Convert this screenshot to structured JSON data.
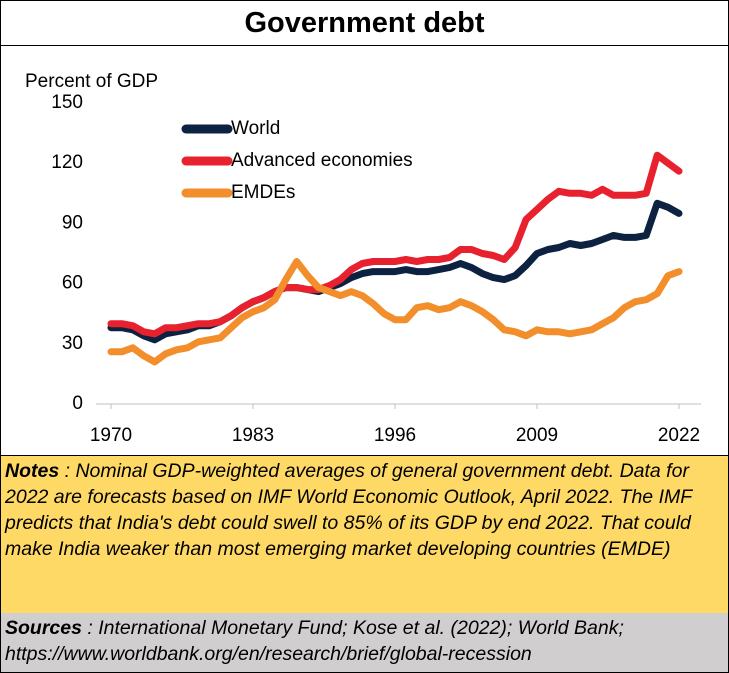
{
  "chart_data": {
    "type": "line",
    "title": "Government debt",
    "y_label": "Percent of GDP",
    "x": [
      1970,
      1971,
      1972,
      1973,
      1974,
      1975,
      1976,
      1977,
      1978,
      1979,
      1980,
      1981,
      1982,
      1983,
      1984,
      1985,
      1986,
      1987,
      1988,
      1989,
      1990,
      1991,
      1992,
      1993,
      1994,
      1995,
      1996,
      1997,
      1998,
      1999,
      2000,
      2001,
      2002,
      2003,
      2004,
      2005,
      2006,
      2007,
      2008,
      2009,
      2010,
      2011,
      2012,
      2013,
      2014,
      2015,
      2016,
      2017,
      2018,
      2019,
      2020,
      2021,
      2022
    ],
    "xlim": [
      1970,
      2022
    ],
    "xticks": [
      1970,
      1983,
      1996,
      2009,
      2022
    ],
    "ylim": [
      0,
      150
    ],
    "yticks": [
      0,
      30,
      60,
      90,
      120,
      150
    ],
    "grid": false,
    "legend": "upper left",
    "series": [
      {
        "name": "World",
        "color": "#0d2240",
        "values": [
          38,
          38,
          37,
          34,
          32,
          35,
          36,
          37,
          39,
          39,
          41,
          44,
          48,
          51,
          53,
          56,
          58,
          58,
          57,
          56,
          58,
          60,
          63,
          65,
          66,
          66,
          66,
          67,
          66,
          66,
          67,
          68,
          70,
          68,
          65,
          63,
          62,
          64,
          69,
          75,
          77,
          78,
          80,
          79,
          80,
          82,
          84,
          83,
          83,
          84,
          100,
          98,
          95
        ]
      },
      {
        "name": "Advanced economies",
        "color": "#e8212f",
        "values": [
          40,
          40,
          39,
          36,
          35,
          38,
          38,
          39,
          40,
          40,
          41,
          44,
          48,
          51,
          53,
          56,
          58,
          58,
          57,
          57,
          59,
          62,
          67,
          70,
          71,
          71,
          71,
          72,
          71,
          72,
          72,
          73,
          77,
          77,
          75,
          74,
          72,
          78,
          92,
          97,
          102,
          106,
          105,
          105,
          104,
          107,
          104,
          104,
          104,
          105,
          124,
          120,
          116
        ]
      },
      {
        "name": "EMDEs",
        "color": "#f28e2b",
        "values": [
          26,
          26,
          28,
          24,
          21,
          25,
          27,
          28,
          31,
          32,
          33,
          38,
          43,
          46,
          48,
          52,
          62,
          71,
          64,
          58,
          56,
          54,
          56,
          54,
          50,
          45,
          42,
          42,
          48,
          49,
          47,
          48,
          51,
          49,
          46,
          42,
          37,
          36,
          34,
          37,
          36,
          36,
          35,
          36,
          37,
          40,
          43,
          48,
          51,
          52,
          55,
          64,
          66
        ]
      }
    ]
  },
  "notes": {
    "label": "Notes",
    "text": ": Nominal GDP-weighted averages of general government debt. Data for 2022 are forecasts based on IMF World Economic Outlook, April 2022. The IMF predicts that India's debt could swell to 85% of its GDP by end 2022.  That could make India weaker than most emerging market developing countries (EMDE)"
  },
  "sources": {
    "label": "Sources",
    "text": ": International Monetary Fund; Kose et al. (2022); World Bank; https://www.worldbank.org/en/research/brief/global-recession"
  }
}
